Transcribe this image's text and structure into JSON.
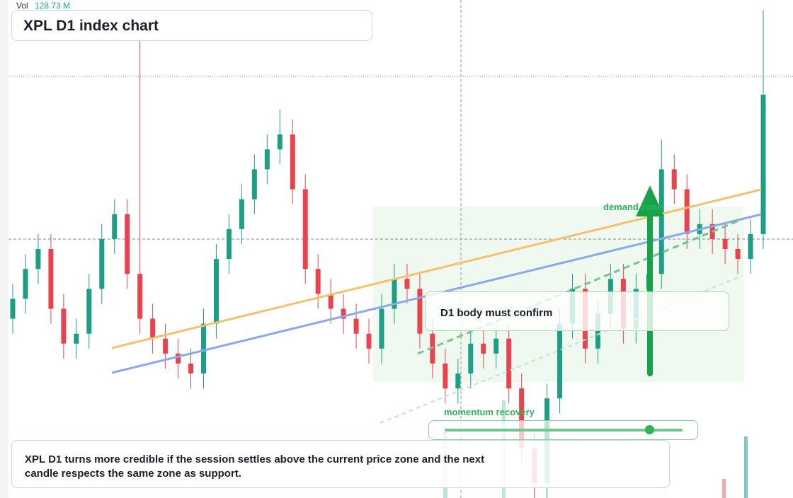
{
  "chart_data": {
    "type": "candlestick",
    "title": "XPL D1 index chart",
    "volume_label": "Vol",
    "volume_value": "128.73 M",
    "zone_label": "demand zone",
    "callout": "D1 body must confirm",
    "momentum_label": "momentum recovery",
    "note": "XPL D1 turns more credible if the session settles above the current price zone and the next candle respects the same zone as support.",
    "up_color": "#1e9e84",
    "down_color": "#e8434f",
    "ylim": [
      0,
      100
    ],
    "open": [
      36,
      40,
      46,
      50,
      38,
      31,
      33,
      42,
      52,
      57,
      45,
      36,
      32,
      29,
      27,
      25,
      35,
      48,
      54,
      60,
      66,
      70,
      73,
      62,
      46,
      41,
      38,
      36,
      33,
      30,
      38,
      44,
      42,
      33,
      27,
      22,
      25,
      31,
      29,
      32,
      22,
      10,
      3,
      20,
      35,
      42,
      30,
      37,
      44,
      34,
      42,
      45,
      66,
      62,
      53,
      55,
      52,
      50,
      48,
      53
    ],
    "high": [
      43,
      49,
      53,
      53,
      41,
      36,
      45,
      55,
      60,
      60,
      92,
      39,
      35,
      32,
      30,
      38,
      51,
      57,
      63,
      69,
      73,
      78,
      76,
      65,
      49,
      44,
      41,
      39,
      36,
      41,
      47,
      47,
      45,
      36,
      30,
      28,
      34,
      34,
      35,
      35,
      25,
      13,
      23,
      38,
      45,
      45,
      40,
      47,
      47,
      45,
      48,
      72,
      69,
      65,
      58,
      58,
      55,
      53,
      56,
      98
    ],
    "low": [
      33,
      37,
      43,
      35,
      28,
      28,
      30,
      39,
      49,
      42,
      33,
      29,
      26,
      24,
      22,
      22,
      32,
      45,
      51,
      57,
      63,
      67,
      59,
      43,
      38,
      35,
      33,
      30,
      27,
      27,
      35,
      39,
      30,
      24,
      19,
      19,
      22,
      26,
      26,
      19,
      7,
      0,
      0,
      17,
      32,
      27,
      27,
      34,
      31,
      31,
      39,
      42,
      59,
      50,
      50,
      49,
      47,
      45,
      45,
      50
    ],
    "close": [
      40,
      46,
      50,
      38,
      31,
      33,
      42,
      52,
      57,
      45,
      36,
      32,
      29,
      27,
      25,
      35,
      48,
      54,
      60,
      66,
      70,
      73,
      62,
      46,
      41,
      38,
      36,
      33,
      30,
      38,
      44,
      42,
      33,
      27,
      22,
      25,
      31,
      29,
      32,
      22,
      10,
      3,
      20,
      35,
      42,
      30,
      37,
      44,
      34,
      42,
      45,
      66,
      62,
      53,
      55,
      52,
      50,
      48,
      53,
      81
    ]
  }
}
